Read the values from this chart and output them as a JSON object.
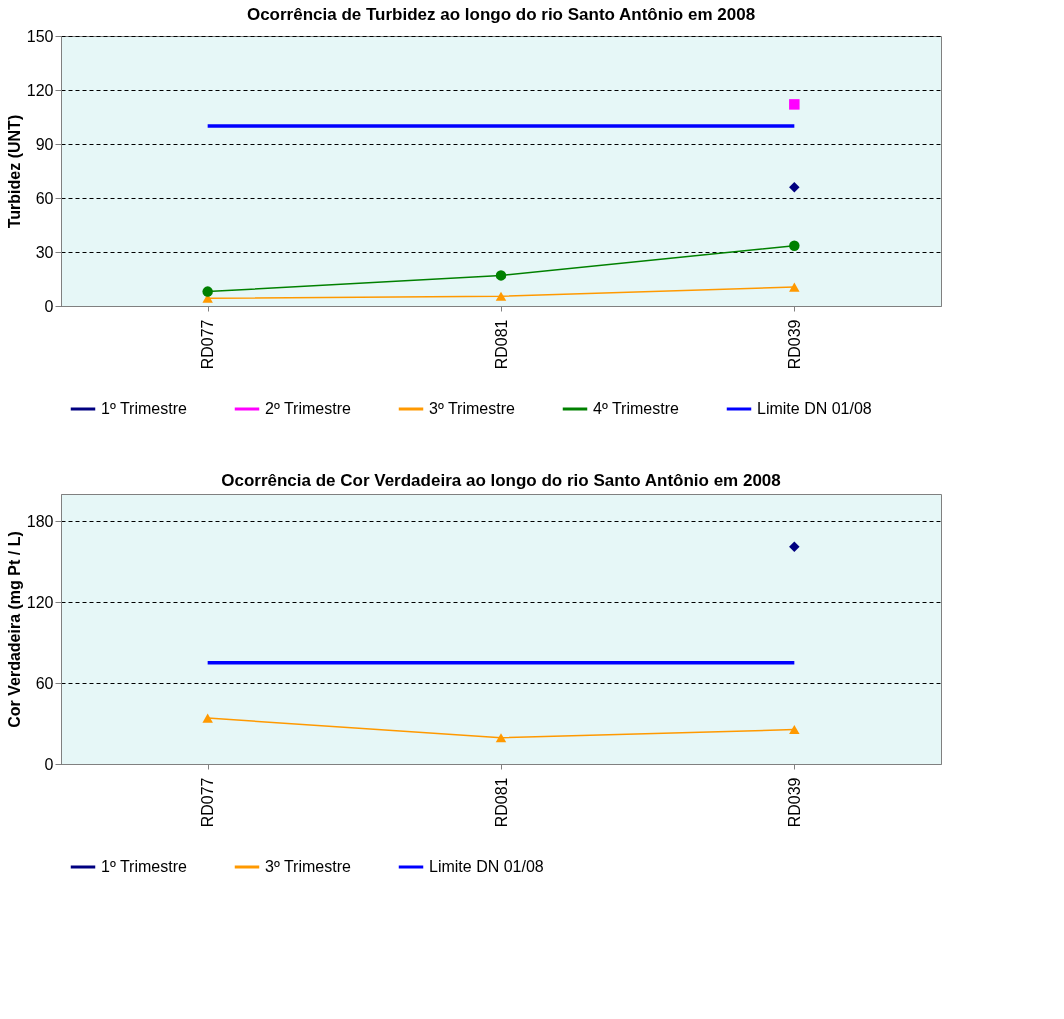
{
  "chart_data": [
    {
      "type": "line",
      "title": "Ocorrência de Turbidez ao longo do rio Santo Antônio em 2008",
      "ylabel": "Turbidez (UNT)",
      "categories": [
        "RD077",
        "RD081",
        "RD039"
      ],
      "ylim": [
        0,
        150
      ],
      "yticks": [
        0,
        30,
        60,
        90,
        120,
        150
      ],
      "grid": "y",
      "legend": "bottom",
      "line_style": "solid",
      "series": [
        {
          "name": "1º Trimestre",
          "color": "#000080",
          "marker": "diamond",
          "values": [
            null,
            null,
            66
          ]
        },
        {
          "name": "2º Trimestre",
          "color": "#ff00ff",
          "marker": "square",
          "values": [
            null,
            null,
            112
          ]
        },
        {
          "name": "3º Trimestre",
          "color": "#ff9900",
          "marker": "triangle",
          "values": [
            4.3,
            5.4,
            10.5
          ]
        },
        {
          "name": "4º Trimestre",
          "color": "#008000",
          "marker": "circle",
          "values": [
            8,
            17,
            33.5
          ]
        },
        {
          "name": "Limite DN 01/08",
          "color": "#0000ff",
          "marker": "none",
          "values": [
            100,
            100,
            100
          ]
        }
      ]
    },
    {
      "type": "line",
      "title": "Ocorrência de Cor Verdadeira ao longo do rio Santo Antônio em 2008",
      "ylabel": "Cor Verdadeira (mg Pt / L)",
      "categories": [
        "RD077",
        "RD081",
        "RD039"
      ],
      "ylim": [
        0,
        200
      ],
      "yticks": [
        0,
        60,
        120,
        180
      ],
      "grid": "y",
      "legend": "bottom",
      "line_style": "solid",
      "series": [
        {
          "name": "1º Trimestre",
          "color": "#000080",
          "marker": "diamond",
          "values": [
            null,
            null,
            161
          ]
        },
        {
          "name": "3º Trimestre",
          "color": "#ff9900",
          "marker": "triangle",
          "values": [
            34,
            19.5,
            25.5
          ]
        },
        {
          "name": "Limite DN 01/08",
          "color": "#0000ff",
          "marker": "none",
          "values": [
            75,
            75,
            75
          ]
        }
      ]
    }
  ]
}
